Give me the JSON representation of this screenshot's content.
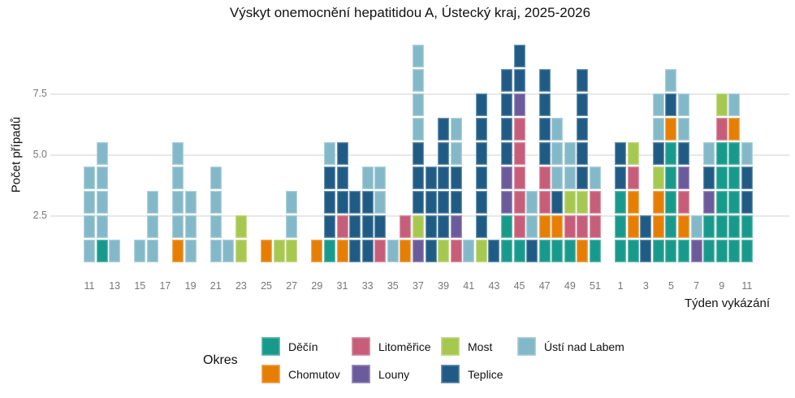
{
  "title": "Výskyt onemocnění hepatitidou A, Ústecký kraj, 2025-2026",
  "y_axis": {
    "label": "Počet případů",
    "ticks": [
      "2.5",
      "5.0",
      "7.5"
    ],
    "tick_values": [
      2.5,
      5.0,
      7.5
    ]
  },
  "x_axis": {
    "label": "Týden vykázání"
  },
  "legend": {
    "title": "Okres"
  },
  "chart_data": {
    "type": "bar",
    "stacked": true,
    "title": "Výskyt onemocnění hepatitidou A, Ústecký kraj, 2025-2026",
    "xlabel": "Týden vykázání",
    "ylabel": "Počet případů",
    "y_ticks": [
      2.5,
      5.0,
      7.5
    ],
    "ylim": [
      0,
      10
    ],
    "grid": "horizontal",
    "legend_position": "bottom",
    "unit_per_segment": 1,
    "districts": [
      "Děčín",
      "Chomutov",
      "Litoměřice",
      "Louny",
      "Most",
      "Teplice",
      "Ústí nad Labem"
    ],
    "colors": {
      "Děčín": "#179A8B",
      "Chomutov": "#E67E04",
      "Litoměřice": "#C65D79",
      "Louny": "#6C5B9B",
      "Most": "#A6C850",
      "Teplice": "#1F5B84",
      "Ústí nad Labem": "#83B8C8"
    },
    "weeks": [
      {
        "label": "11",
        "tick": true,
        "counts": [
          0,
          0,
          0,
          0,
          0,
          0,
          4
        ]
      },
      {
        "label": "12",
        "tick": false,
        "counts": [
          1,
          0,
          0,
          0,
          0,
          0,
          4
        ]
      },
      {
        "label": "13",
        "tick": true,
        "counts": [
          0,
          0,
          0,
          0,
          0,
          0,
          1
        ]
      },
      {
        "label": "14",
        "tick": false,
        "counts": [
          0,
          0,
          0,
          0,
          0,
          0,
          0
        ]
      },
      {
        "label": "15",
        "tick": true,
        "counts": [
          0,
          0,
          0,
          0,
          0,
          0,
          1
        ]
      },
      {
        "label": "16",
        "tick": false,
        "counts": [
          0,
          0,
          0,
          0,
          0,
          0,
          3
        ]
      },
      {
        "label": "17",
        "tick": true,
        "counts": [
          0,
          0,
          0,
          0,
          0,
          0,
          0
        ]
      },
      {
        "label": "18",
        "tick": false,
        "counts": [
          0,
          1,
          0,
          0,
          0,
          0,
          4
        ]
      },
      {
        "label": "19",
        "tick": true,
        "counts": [
          0,
          0,
          0,
          0,
          0,
          0,
          3
        ]
      },
      {
        "label": "20",
        "tick": false,
        "counts": [
          0,
          0,
          0,
          0,
          0,
          0,
          0
        ]
      },
      {
        "label": "21",
        "tick": true,
        "counts": [
          0,
          0,
          0,
          0,
          0,
          0,
          4
        ]
      },
      {
        "label": "22",
        "tick": false,
        "counts": [
          0,
          0,
          0,
          0,
          0,
          0,
          1
        ]
      },
      {
        "label": "23",
        "tick": true,
        "counts": [
          0,
          0,
          0,
          0,
          2,
          0,
          0
        ]
      },
      {
        "label": "24",
        "tick": false,
        "counts": [
          0,
          0,
          0,
          0,
          0,
          0,
          0
        ]
      },
      {
        "label": "25",
        "tick": true,
        "counts": [
          0,
          1,
          0,
          0,
          0,
          0,
          0
        ]
      },
      {
        "label": "26",
        "tick": false,
        "counts": [
          0,
          0,
          0,
          0,
          1,
          0,
          0
        ]
      },
      {
        "label": "27",
        "tick": true,
        "counts": [
          0,
          0,
          0,
          0,
          1,
          0,
          2
        ]
      },
      {
        "label": "28",
        "tick": false,
        "counts": [
          0,
          0,
          0,
          0,
          0,
          0,
          0
        ]
      },
      {
        "label": "29",
        "tick": true,
        "counts": [
          0,
          1,
          0,
          0,
          0,
          0,
          0
        ]
      },
      {
        "label": "30",
        "tick": false,
        "counts": [
          1,
          0,
          0,
          0,
          0,
          3,
          1
        ]
      },
      {
        "label": "31",
        "tick": true,
        "counts": [
          0,
          1,
          1,
          0,
          0,
          3,
          0
        ]
      },
      {
        "label": "32",
        "tick": false,
        "counts": [
          0,
          0,
          0,
          0,
          0,
          3,
          0
        ]
      },
      {
        "label": "33",
        "tick": true,
        "counts": [
          0,
          0,
          0,
          0,
          0,
          3,
          1
        ]
      },
      {
        "label": "34",
        "tick": false,
        "counts": [
          0,
          0,
          1,
          0,
          0,
          1,
          2
        ]
      },
      {
        "label": "35",
        "tick": true,
        "counts": [
          0,
          0,
          0,
          0,
          0,
          0,
          1
        ]
      },
      {
        "label": "36",
        "tick": false,
        "counts": [
          0,
          1,
          1,
          0,
          0,
          0,
          0
        ]
      },
      {
        "label": "37",
        "tick": true,
        "counts": [
          0,
          0,
          0,
          1,
          1,
          3,
          4
        ]
      },
      {
        "label": "38",
        "tick": false,
        "counts": [
          0,
          0,
          0,
          0,
          0,
          4,
          0
        ]
      },
      {
        "label": "39",
        "tick": true,
        "counts": [
          0,
          0,
          0,
          0,
          1,
          5,
          0
        ]
      },
      {
        "label": "40",
        "tick": false,
        "counts": [
          0,
          0,
          1,
          1,
          0,
          2,
          2
        ]
      },
      {
        "label": "41",
        "tick": true,
        "counts": [
          0,
          0,
          0,
          0,
          0,
          0,
          1
        ]
      },
      {
        "label": "42",
        "tick": false,
        "counts": [
          0,
          0,
          0,
          0,
          1,
          6,
          0
        ]
      },
      {
        "label": "43",
        "tick": true,
        "counts": [
          0,
          0,
          0,
          0,
          0,
          1,
          0
        ]
      },
      {
        "label": "44",
        "tick": false,
        "counts": [
          2,
          0,
          0,
          2,
          0,
          4,
          0
        ]
      },
      {
        "label": "45",
        "tick": true,
        "counts": [
          1,
          0,
          5,
          1,
          0,
          2,
          0
        ]
      },
      {
        "label": "46",
        "tick": false,
        "counts": [
          0,
          0,
          0,
          0,
          0,
          1,
          2
        ]
      },
      {
        "label": "47",
        "tick": true,
        "counts": [
          1,
          1,
          2,
          0,
          0,
          4,
          0
        ]
      },
      {
        "label": "48",
        "tick": false,
        "counts": [
          1,
          1,
          0,
          0,
          0,
          1,
          3
        ]
      },
      {
        "label": "49",
        "tick": true,
        "counts": [
          1,
          0,
          1,
          0,
          1,
          0,
          2
        ]
      },
      {
        "label": "50",
        "tick": false,
        "counts": [
          0,
          1,
          1,
          0,
          1,
          5,
          0
        ]
      },
      {
        "label": "51",
        "tick": true,
        "counts": [
          1,
          0,
          2,
          0,
          0,
          0,
          1
        ]
      },
      {
        "label": "52",
        "tick": false,
        "counts": [
          0,
          0,
          0,
          0,
          0,
          0,
          0
        ]
      },
      {
        "label": "1",
        "tick": true,
        "counts": [
          3,
          0,
          0,
          0,
          0,
          2,
          0
        ]
      },
      {
        "label": "2",
        "tick": false,
        "counts": [
          1,
          2,
          1,
          0,
          1,
          0,
          0
        ]
      },
      {
        "label": "3",
        "tick": true,
        "counts": [
          0,
          0,
          0,
          0,
          0,
          2,
          0
        ]
      },
      {
        "label": "4",
        "tick": false,
        "counts": [
          1,
          2,
          0,
          0,
          1,
          1,
          2
        ]
      },
      {
        "label": "5",
        "tick": true,
        "counts": [
          5,
          1,
          0,
          0,
          0,
          1,
          1
        ]
      },
      {
        "label": "6",
        "tick": false,
        "counts": [
          1,
          1,
          1,
          1,
          0,
          1,
          2
        ]
      },
      {
        "label": "7",
        "tick": true,
        "counts": [
          0,
          0,
          0,
          1,
          0,
          0,
          1
        ]
      },
      {
        "label": "8",
        "tick": false,
        "counts": [
          2,
          0,
          0,
          1,
          0,
          1,
          1
        ]
      },
      {
        "label": "9",
        "tick": true,
        "counts": [
          5,
          0,
          1,
          0,
          1,
          0,
          0
        ]
      },
      {
        "label": "10",
        "tick": false,
        "counts": [
          5,
          1,
          0,
          0,
          0,
          0,
          1
        ]
      },
      {
        "label": "11",
        "tick": true,
        "counts": [
          2,
          0,
          0,
          0,
          0,
          2,
          1
        ]
      }
    ]
  }
}
